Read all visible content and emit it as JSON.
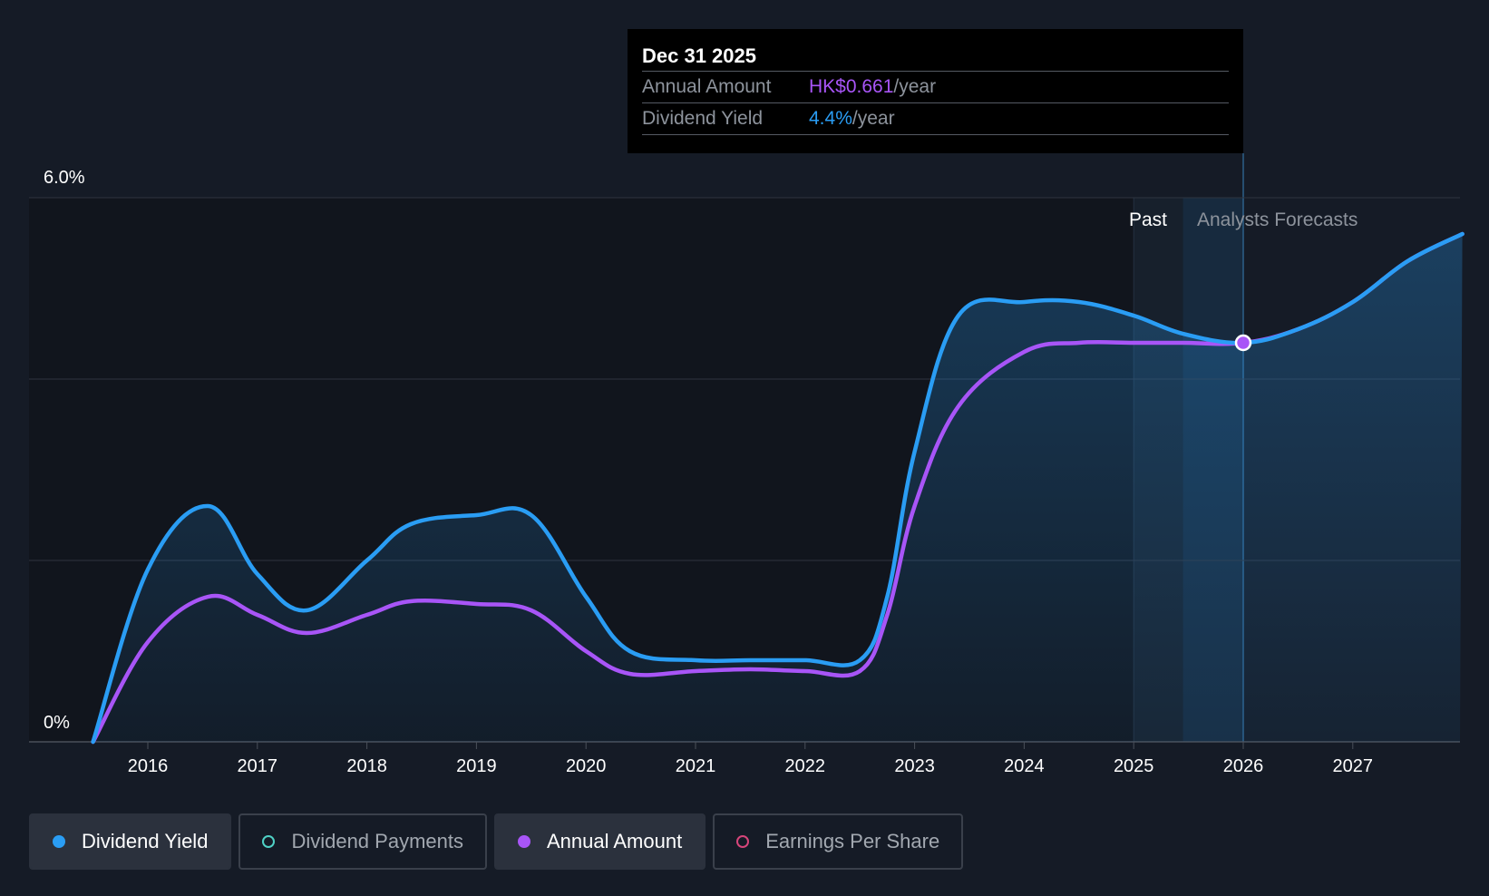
{
  "chart_data": {
    "type": "line",
    "y_axis": {
      "min": 0,
      "max": 6.0,
      "labels": [
        "6.0%",
        "0%"
      ],
      "gridlines": [
        0,
        2,
        4,
        6
      ]
    },
    "x_axis": {
      "min": 2015.3,
      "max": 2028.0,
      "ticks": [
        {
          "value": 2016,
          "label": "2016"
        },
        {
          "value": 2017,
          "label": "2017"
        },
        {
          "value": 2018,
          "label": "2018"
        },
        {
          "value": 2019,
          "label": "2019"
        },
        {
          "value": 2020,
          "label": "2020"
        },
        {
          "value": 2021,
          "label": "2021"
        },
        {
          "value": 2022,
          "label": "2022"
        },
        {
          "value": 2023,
          "label": "2023"
        },
        {
          "value": 2024,
          "label": "2024"
        },
        {
          "value": 2025,
          "label": "2025"
        },
        {
          "value": 2026,
          "label": "2026"
        },
        {
          "value": 2027,
          "label": "2027"
        }
      ]
    },
    "regions": {
      "past_label": "Past",
      "forecast_label": "Analysts Forecasts",
      "past_shade_start": 2025.0,
      "past_shade_band": 2025.45,
      "forecast_start": 2026.0
    },
    "series": [
      {
        "name": "Dividend Yield",
        "color": "#2a9df4",
        "points": [
          [
            2015.5,
            0.0
          ],
          [
            2016.0,
            1.9
          ],
          [
            2016.55,
            2.6
          ],
          [
            2017.0,
            1.85
          ],
          [
            2017.45,
            1.45
          ],
          [
            2018.0,
            2.0
          ],
          [
            2018.4,
            2.4
          ],
          [
            2019.0,
            2.5
          ],
          [
            2019.5,
            2.5
          ],
          [
            2020.0,
            1.6
          ],
          [
            2020.4,
            1.0
          ],
          [
            2021.0,
            0.9
          ],
          [
            2021.5,
            0.9
          ],
          [
            2022.0,
            0.9
          ],
          [
            2022.5,
            0.9
          ],
          [
            2022.75,
            1.6
          ],
          [
            2023.0,
            3.2
          ],
          [
            2023.4,
            4.7
          ],
          [
            2024.0,
            4.85
          ],
          [
            2024.5,
            4.85
          ],
          [
            2025.0,
            4.7
          ],
          [
            2025.45,
            4.5
          ],
          [
            2026.0,
            4.4
          ],
          [
            2026.5,
            4.55
          ],
          [
            2027.0,
            4.85
          ],
          [
            2027.5,
            5.3
          ],
          [
            2028.0,
            5.6
          ]
        ]
      },
      {
        "name": "Annual Amount",
        "color": "#a855f7",
        "points": [
          [
            2015.5,
            0.0
          ],
          [
            2016.0,
            1.1
          ],
          [
            2016.55,
            1.6
          ],
          [
            2017.0,
            1.4
          ],
          [
            2017.45,
            1.2
          ],
          [
            2018.0,
            1.4
          ],
          [
            2018.4,
            1.55
          ],
          [
            2019.0,
            1.52
          ],
          [
            2019.5,
            1.45
          ],
          [
            2020.0,
            1.0
          ],
          [
            2020.4,
            0.75
          ],
          [
            2021.0,
            0.78
          ],
          [
            2021.5,
            0.8
          ],
          [
            2022.0,
            0.78
          ],
          [
            2022.5,
            0.78
          ],
          [
            2022.75,
            1.4
          ],
          [
            2023.0,
            2.6
          ],
          [
            2023.4,
            3.7
          ],
          [
            2024.0,
            4.3
          ],
          [
            2024.5,
            4.4
          ],
          [
            2025.0,
            4.4
          ],
          [
            2025.45,
            4.4
          ],
          [
            2026.0,
            4.4
          ],
          [
            2026.5,
            4.55
          ],
          [
            2027.0,
            4.85
          ],
          [
            2027.5,
            5.3
          ],
          [
            2028.0,
            5.6
          ]
        ]
      }
    ],
    "highlight": {
      "x": 2026.0,
      "y": 4.4
    }
  },
  "tooltip": {
    "date": "Dec 31 2025",
    "rows": [
      {
        "label": "Annual Amount",
        "value": "HK$0.661",
        "unit": "/year"
      },
      {
        "label": "Dividend Yield",
        "value": "4.4%",
        "unit": "/year"
      }
    ]
  },
  "legend": [
    {
      "label": "Dividend Yield",
      "color": "#2a9df4",
      "active": true
    },
    {
      "label": "Dividend Payments",
      "color": "#4fd1c5",
      "active": false
    },
    {
      "label": "Annual Amount",
      "color": "#a855f7",
      "active": true
    },
    {
      "label": "Earnings Per Share",
      "color": "#d6457a",
      "active": false
    }
  ]
}
